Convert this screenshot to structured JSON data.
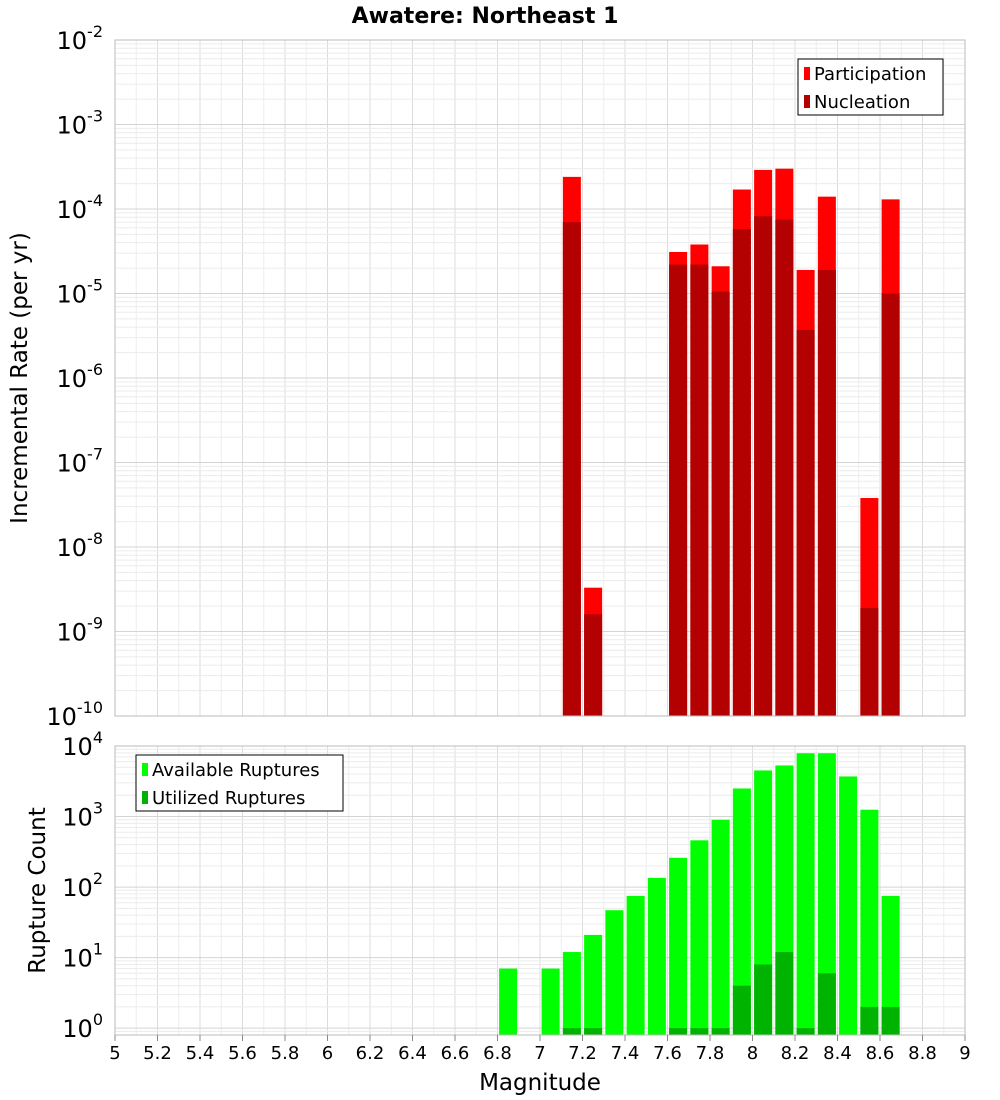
{
  "title": "Awatere: Northeast 1",
  "xlabel": "Magnitude",
  "chart_data": [
    {
      "type": "bar",
      "panel": "top",
      "ylabel": "Incremental Rate (per yr)",
      "yscale": "log",
      "ylim": [
        1e-10,
        0.01
      ],
      "xlim": [
        5,
        9
      ],
      "y_tick_exponents": [
        -10,
        -9,
        -8,
        -7,
        -6,
        -5,
        -4,
        -3,
        -2
      ],
      "legend_position": "top-right",
      "grid": true,
      "series": [
        {
          "name": "Participation",
          "color": "#ff0000",
          "x": [
            7.15,
            7.25,
            7.65,
            7.75,
            7.85,
            7.95,
            8.05,
            8.15,
            8.25,
            8.35,
            8.55,
            8.65
          ],
          "values": [
            0.00024,
            3.3e-09,
            3.1e-05,
            3.8e-05,
            2.1e-05,
            0.00017,
            0.00029,
            0.0003,
            1.9e-05,
            0.00014,
            3.8e-08,
            0.00013
          ]
        },
        {
          "name": "Nucleation",
          "color": "#b30000",
          "x": [
            7.15,
            7.25,
            7.65,
            7.75,
            7.85,
            7.95,
            8.05,
            8.15,
            8.25,
            8.35,
            8.55,
            8.65
          ],
          "values": [
            7e-05,
            1.6e-09,
            2.2e-05,
            2.2e-05,
            1.05e-05,
            5.8e-05,
            8.2e-05,
            7.5e-05,
            3.7e-06,
            1.9e-05,
            1.9e-09,
            1e-05
          ]
        }
      ]
    },
    {
      "type": "bar",
      "panel": "bottom",
      "ylabel": "Rupture Count",
      "yscale": "log",
      "ylim": [
        0.8,
        10000
      ],
      "xlim": [
        5,
        9
      ],
      "y_tick_exponents": [
        0,
        1,
        2,
        3,
        4
      ],
      "legend_position": "top-left",
      "grid": true,
      "series": [
        {
          "name": "Available Ruptures",
          "color": "#00ff00",
          "x": [
            6.85,
            7.05,
            7.15,
            7.25,
            7.35,
            7.45,
            7.55,
            7.65,
            7.75,
            7.85,
            7.95,
            8.05,
            8.15,
            8.25,
            8.35,
            8.45,
            8.55,
            8.65
          ],
          "values": [
            7,
            7,
            12,
            21,
            47,
            75,
            135,
            260,
            460,
            900,
            2500,
            4500,
            5300,
            7900,
            7900,
            3700,
            1250,
            75
          ]
        },
        {
          "name": "Utilized Ruptures",
          "color": "#00b300",
          "x": [
            7.15,
            7.25,
            7.65,
            7.75,
            7.85,
            7.95,
            8.05,
            8.15,
            8.25,
            8.35,
            8.55,
            8.65
          ],
          "values": [
            1,
            1,
            1,
            1,
            1,
            4,
            8,
            12,
            1,
            6,
            2,
            2
          ]
        }
      ]
    }
  ],
  "x_ticks": [
    "5",
    "5.2",
    "5.4",
    "5.6",
    "5.8",
    "6",
    "6.2",
    "6.4",
    "6.6",
    "6.8",
    "7",
    "7.2",
    "7.4",
    "7.6",
    "7.8",
    "8",
    "8.2",
    "8.4",
    "8.6",
    "8.8",
    "9"
  ],
  "tick_base": "10"
}
